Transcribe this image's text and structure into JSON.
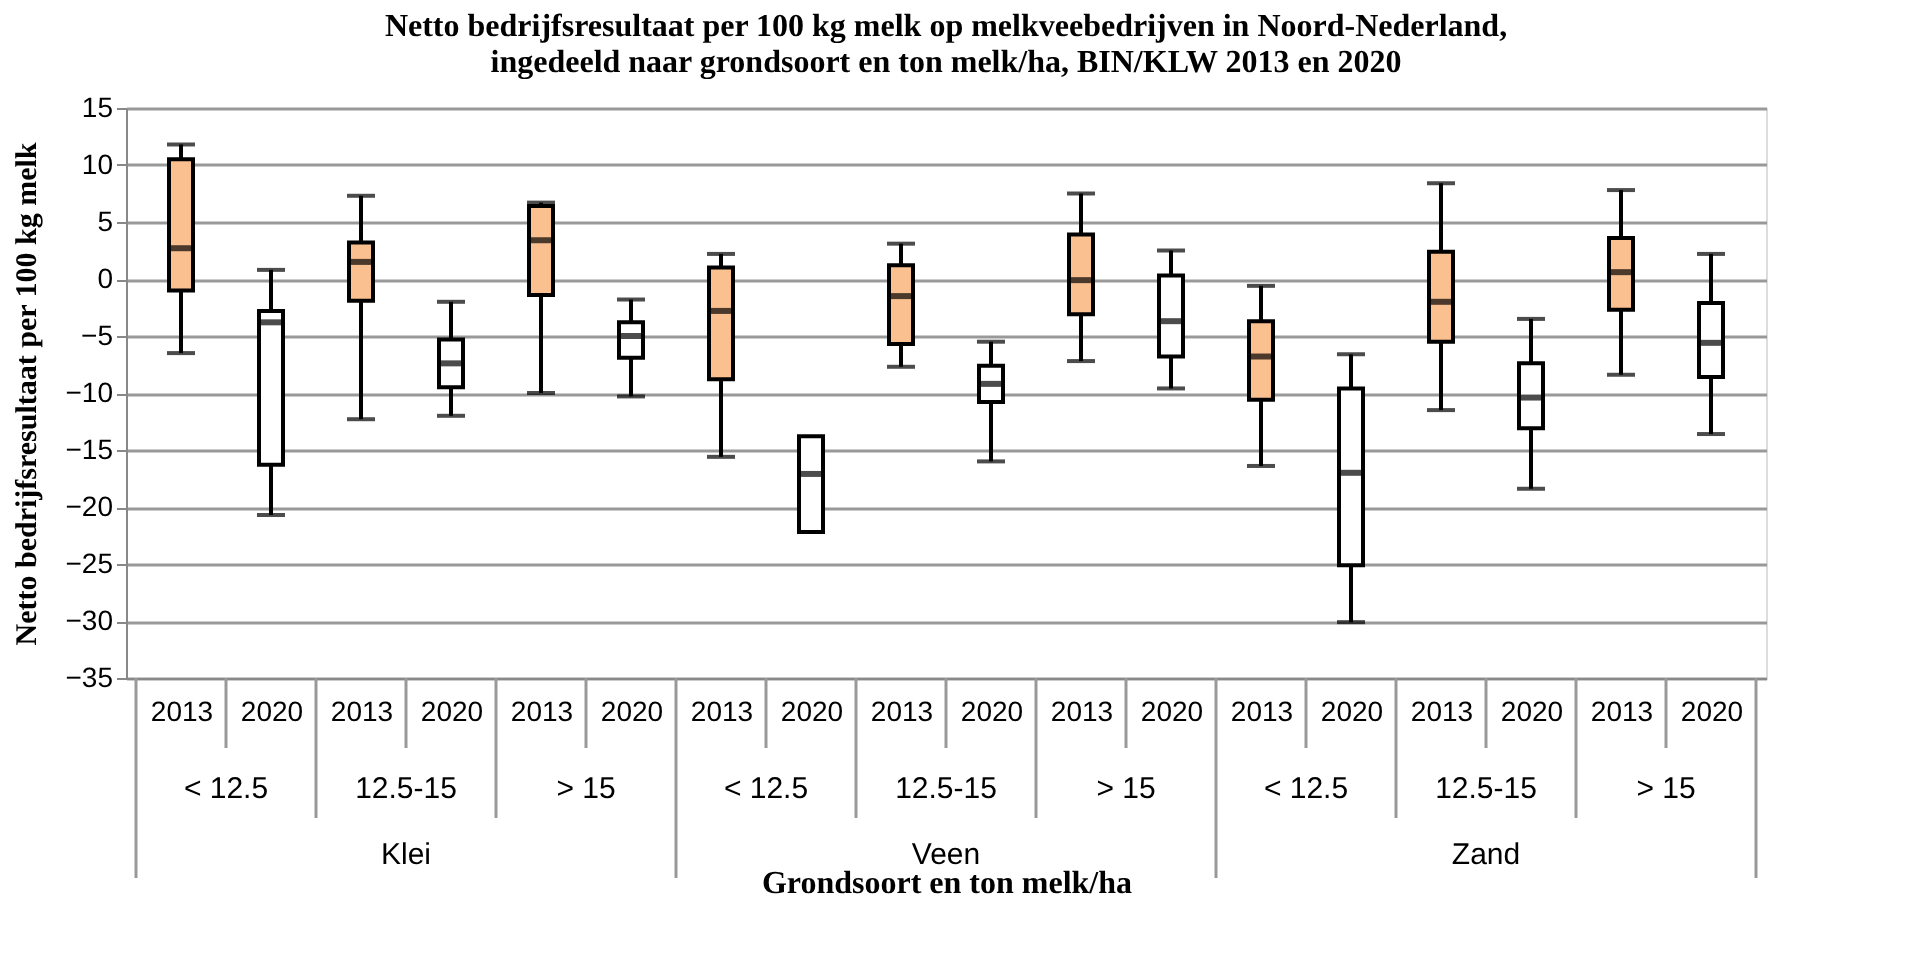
{
  "chart_data": {
    "type": "box",
    "title": [
      "Netto bedrijfsresultaat  per 100 kg melk op melkveebedrijven in Noord-Nederland,",
      "ingedeeld naar grondsoort en ton melk/ha, BIN/KLW 2013 en 2020"
    ],
    "xlabel": "Grondsoort en ton melk/ha",
    "ylabel": "Netto bedrijfsresultaat  per 100 kg melk",
    "categories": [
      "2013",
      "2020",
      "2013",
      "2020",
      "2013",
      "2020",
      "2013",
      "2020",
      "2013",
      "2020",
      "2013",
      "2020",
      "2013",
      "2020",
      "2013",
      "2020",
      "2013",
      "2020"
    ],
    "colors": [
      "#fac090",
      "#ffffff",
      "#fac090",
      "#ffffff",
      "#fac090",
      "#ffffff",
      "#fac090",
      "#ffffff",
      "#fac090",
      "#ffffff",
      "#fac090",
      "#ffffff",
      "#fac090",
      "#ffffff",
      "#fac090",
      "#ffffff",
      "#fac090",
      "#ffffff"
    ],
    "boxes": [
      {
        "low": -6.5,
        "q1": -1,
        "median": 2.7,
        "q3": 10.5,
        "high": 11.8
      },
      {
        "low": -20.7,
        "q1": -16.3,
        "median": -3.8,
        "q3": -2.8,
        "high": 0.8
      },
      {
        "low": -12.3,
        "q1": -1.9,
        "median": 1.5,
        "q3": 3.2,
        "high": 7.3
      },
      {
        "low": -12,
        "q1": -9.5,
        "median": -7.4,
        "q3": -5.3,
        "high": -2
      },
      {
        "low": -10,
        "q1": -1.4,
        "median": 3.4,
        "q3": 6.4,
        "high": 6.7
      },
      {
        "low": -10.3,
        "q1": -6.9,
        "median": -5,
        "q3": -3.8,
        "high": -1.8
      },
      {
        "low": -15.6,
        "q1": -8.8,
        "median": -2.8,
        "q3": 1.0,
        "high": 2.2
      },
      {
        "low": -22.2,
        "q1": -22.2,
        "median": -17.1,
        "q3": -13.8,
        "high": -13.8
      },
      {
        "low": -7.7,
        "q1": -5.7,
        "median": -1.5,
        "q3": 1.2,
        "high": 3.1
      },
      {
        "low": -16,
        "q1": -10.8,
        "median": -9.2,
        "q3": -7.6,
        "high": -5.5
      },
      {
        "low": -7.2,
        "q1": -3.1,
        "median": -0.1,
        "q3": 3.9,
        "high": 7.5
      },
      {
        "low": -9.6,
        "q1": -6.8,
        "median": -3.7,
        "q3": 0.3,
        "high": 2.5
      },
      {
        "low": -16.4,
        "q1": -10.6,
        "median": -6.8,
        "q3": -3.7,
        "high": -0.6
      },
      {
        "low": -30.1,
        "q1": -25.1,
        "median": -17,
        "q3": -9.6,
        "high": -6.6
      },
      {
        "low": -11.5,
        "q1": -5.5,
        "median": -2,
        "q3": 2.4,
        "high": 8.4
      },
      {
        "low": -18.4,
        "q1": -13.1,
        "median": -10.4,
        "q3": -7.4,
        "high": -3.5
      },
      {
        "low": -8.4,
        "q1": -2.7,
        "median": 0.6,
        "q3": 3.6,
        "high": 7.8
      },
      {
        "low": -13.6,
        "q1": -8.6,
        "median": -5.6,
        "q3": -2.1,
        "high": 2.2
      }
    ],
    "annotations": [
      "< 12.5",
      "12.5-15",
      "> 15",
      "< 12.5",
      "12.5-15",
      "> 15",
      "< 12.5",
      "12.5-15",
      "> 15",
      "Klei",
      "Veen",
      "Zand"
    ],
    "ylim": [
      -35,
      15
    ],
    "yticks": [
      -35,
      -30,
      -25,
      -20,
      -15,
      -10,
      -5,
      0,
      5,
      10,
      15
    ],
    "grid": "y"
  }
}
